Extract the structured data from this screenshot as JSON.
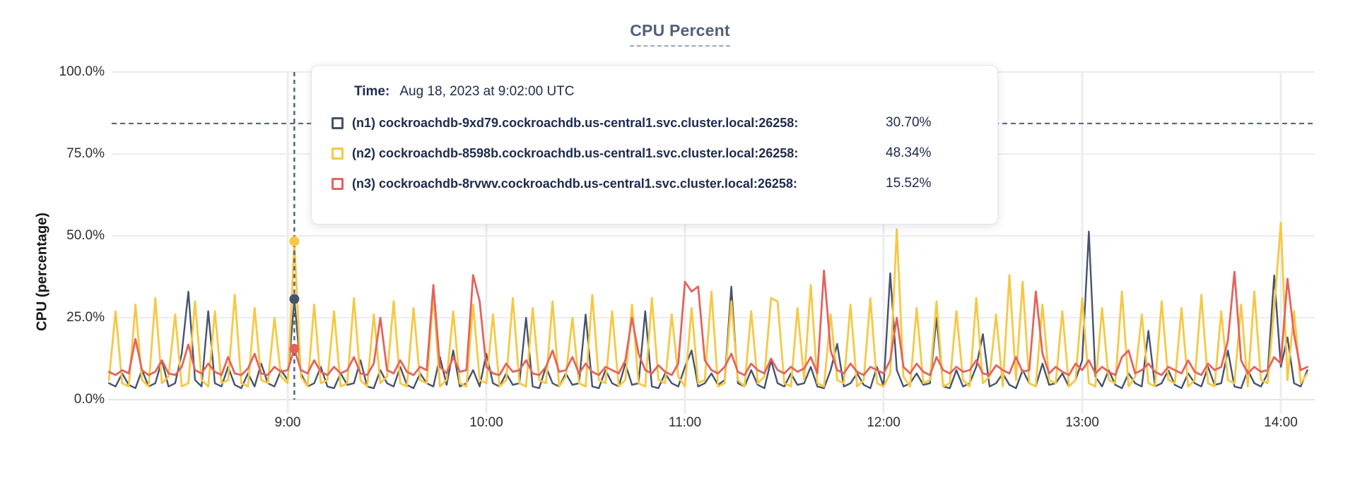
{
  "title": {
    "text": "CPU Percent"
  },
  "y_axis": {
    "label": "CPU (percentage)"
  },
  "tooltip": {
    "time_label": "Time:",
    "time_value": "Aug 18, 2023 at 9:02:00 UTC",
    "rows": [
      {
        "label": "(n1) cockroachdb-9xd79.cockroachdb.us-central1.svc.cluster.local:26258:",
        "value": "30.70%"
      },
      {
        "label": "(n2) cockroachdb-8598b.cockroachdb.us-central1.svc.cluster.local:26258:",
        "value": "48.34%"
      },
      {
        "label": "(n3) cockroachdb-8rvwv.cockroachdb.us-central1.svc.cluster.local:26258:",
        "value": "15.52%"
      }
    ]
  },
  "colors": {
    "title": "#51617a",
    "tooltip_text": "#1e2a4e",
    "guide_dash": "#4d5f79",
    "grid": "#ededef",
    "zero_axis": "#e3e4e7"
  },
  "chart_data": {
    "type": "line",
    "title": "CPU Percent",
    "ylabel": "CPU (percentage)",
    "ylim": [
      0,
      100
    ],
    "grid": true,
    "y_tick_labels": [
      "0.0%",
      "25.0%",
      "50.0%",
      "75.0%",
      "100.0%"
    ],
    "y_tick_values": [
      0,
      25,
      50,
      75,
      100
    ],
    "x_start_minutes": 486,
    "x_step_minutes": 2,
    "x_hour_tick_minutes": [
      540,
      600,
      660,
      720,
      780,
      840
    ],
    "x_hour_tick_labels": [
      "9:00",
      "10:00",
      "11:00",
      "12:00",
      "13:00",
      "14:00"
    ],
    "hover_guide_value_percent": 84.3,
    "crosshair": {
      "time_minutes": 542,
      "time_label": "Aug 18, 2023 at 9:02:00 UTC",
      "values": [
        30.7,
        48.34,
        15.52
      ]
    },
    "series": [
      {
        "name": "(n1) cockroachdb-9xd79.cockroachdb.us-central1.svc.cluster.local:26258",
        "color": "#46536d",
        "stroke_width": 2.4,
        "values": [
          5,
          4,
          8,
          4.5,
          3.5,
          9,
          4,
          5,
          12,
          4,
          5,
          14,
          33,
          6,
          4,
          27,
          5,
          4,
          10,
          4.5,
          3.5,
          8,
          4,
          11,
          5,
          4,
          9,
          6,
          30.7,
          8,
          4,
          5,
          10,
          4,
          3.5,
          8,
          4.5,
          5,
          12,
          4,
          3.5,
          9,
          5,
          4,
          10,
          4.5,
          3.5,
          8,
          5,
          4,
          13,
          4.5,
          15,
          4,
          5,
          9,
          4,
          14,
          5,
          4,
          8,
          4.5,
          5,
          25,
          4,
          3.5,
          10,
          5,
          4,
          8,
          4.5,
          5,
          26,
          4,
          3.5,
          9,
          5,
          4,
          11,
          4.5,
          5,
          27,
          4,
          3.5,
          8,
          5,
          4,
          10,
          15,
          4,
          5,
          8,
          4.5,
          6,
          34.5,
          5,
          4,
          9,
          4.5,
          3.5,
          12,
          5,
          4,
          8,
          4.5,
          5,
          10,
          4,
          3.5,
          9,
          17,
          4,
          5,
          8,
          4.5,
          3.5,
          10,
          4,
          38.6,
          9,
          4,
          5,
          8,
          4.5,
          5,
          25,
          4,
          3.5,
          9,
          4,
          5,
          10,
          20,
          4,
          5,
          8,
          4.5,
          3.5,
          9,
          5,
          4,
          11,
          4.5,
          5,
          8,
          4,
          6,
          12,
          51.3,
          7,
          4,
          9,
          4.5,
          3.5,
          8,
          5,
          4,
          21,
          4,
          5,
          9,
          4.5,
          3.5,
          8,
          5,
          4,
          10,
          4.5,
          5,
          15,
          4,
          3.5,
          9,
          5,
          4,
          8,
          37.9,
          10,
          19,
          5,
          4,
          9
        ]
      },
      {
        "name": "(n2) cockroachdb-8598b.cockroachdb.us-central1.svc.cluster.local:26258",
        "color": "#f6c843",
        "stroke_width": 2.8,
        "values": [
          6,
          27,
          5,
          4,
          29,
          6,
          4,
          31,
          5,
          7,
          26,
          4,
          5,
          30,
          6,
          4,
          27,
          5,
          6,
          32,
          5,
          4,
          28,
          6,
          5,
          25,
          7,
          5,
          48.3,
          7,
          4,
          29,
          5,
          6,
          27,
          4,
          5,
          31,
          6,
          4,
          26,
          5,
          7,
          30,
          5,
          4,
          28,
          6,
          5,
          32,
          4,
          6,
          27,
          5,
          4,
          29,
          6,
          5,
          26,
          4,
          6,
          31,
          5,
          4,
          28,
          6,
          5,
          30,
          4,
          7,
          25,
          5,
          4,
          32,
          6,
          5,
          27,
          4,
          6,
          29,
          5,
          4,
          31,
          6,
          5,
          26,
          7,
          4,
          28,
          5,
          6,
          33,
          4,
          5,
          30,
          6,
          4,
          27,
          5,
          7,
          31,
          30,
          5,
          4,
          28,
          6,
          35,
          5,
          4,
          26,
          6,
          5,
          29,
          4,
          6,
          31,
          5,
          4,
          8,
          52,
          7,
          4,
          28,
          5,
          6,
          30,
          4,
          5,
          27,
          6,
          4,
          31,
          5,
          7,
          26,
          4,
          38,
          6,
          36,
          5,
          4,
          29,
          6,
          5,
          27,
          4,
          6,
          31,
          5,
          4,
          28,
          6,
          5,
          33,
          4,
          7,
          26,
          5,
          4,
          30,
          6,
          5,
          28,
          4,
          6,
          32,
          5,
          4,
          27,
          6,
          5,
          29,
          4,
          33,
          6,
          5,
          28,
          54,
          6,
          27,
          5,
          8
        ]
      },
      {
        "name": "(n3) cockroachdb-8rvwv.cockroachdb.us-central1.svc.cluster.local:26258",
        "color": "#e4635d",
        "stroke_width": 2.8,
        "values": [
          8.5,
          7.5,
          9,
          8,
          18.5,
          9,
          7.5,
          8.5,
          12,
          8,
          7.5,
          10,
          16.8,
          9,
          8,
          11,
          8.5,
          7.5,
          13,
          8,
          7.5,
          9.5,
          14,
          8,
          7.5,
          10,
          8.5,
          9,
          15.5,
          9,
          8,
          12,
          8.5,
          7.5,
          10,
          8,
          9,
          13,
          8,
          7.5,
          11,
          25,
          9,
          8,
          12,
          8.5,
          7.5,
          10,
          9,
          35,
          10,
          8,
          13,
          8.5,
          9,
          38,
          30,
          10,
          8,
          7.5,
          11,
          8.5,
          9,
          12,
          8,
          7.5,
          10,
          15,
          8.5,
          9,
          13,
          8,
          11,
          8.5,
          7.5,
          10,
          9,
          8,
          12,
          25,
          14,
          9,
          8,
          10.5,
          8.5,
          7.5,
          11,
          36,
          33,
          34.5,
          12,
          9,
          8,
          10,
          14,
          8.5,
          7.5,
          11,
          9,
          8,
          12.5,
          9,
          8,
          10,
          8.5,
          9.5,
          13,
          8,
          39.4,
          15,
          9,
          8,
          11,
          8.5,
          7.5,
          10,
          9,
          8,
          12,
          25,
          10,
          8,
          11,
          8.5,
          7.5,
          13,
          9,
          8,
          10,
          8.5,
          9,
          12,
          8,
          7.5,
          10.5,
          9,
          8,
          13,
          8.5,
          9,
          33,
          14,
          8,
          10,
          8.5,
          7.5,
          11,
          9,
          12,
          8,
          10,
          8.5,
          7.5,
          13,
          15,
          8,
          9,
          11,
          8.5,
          7.5,
          10,
          9,
          8,
          12,
          8.5,
          7.5,
          11,
          9,
          10,
          18,
          39,
          12,
          8,
          10,
          8.5,
          9,
          13,
          11,
          36.9,
          20,
          9,
          10
        ]
      }
    ]
  }
}
